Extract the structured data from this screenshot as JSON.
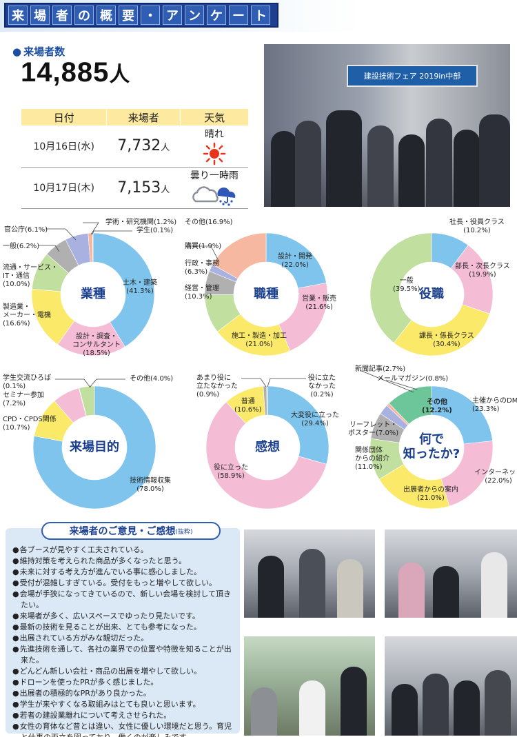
{
  "header": {
    "title_chars": [
      "来",
      "場",
      "者",
      "の",
      "概",
      "要",
      "・",
      "ア",
      "ン",
      "ケ",
      "ー",
      "ト"
    ]
  },
  "visitors": {
    "label": "来場者数",
    "total": "14,885",
    "unit": "人",
    "table": {
      "headers": [
        "日付",
        "来場者",
        "天気"
      ],
      "rows": [
        {
          "date": "10月16日(水)",
          "count": "7,732",
          "unit": "人",
          "weather": "晴れ",
          "weather_icon": "sun-icon"
        },
        {
          "date": "10月17日(木)",
          "count": "7,153",
          "unit": "人",
          "weather": "曇り一時雨",
          "weather_icon": "cloud-rain-icon"
        }
      ]
    }
  },
  "photos": {
    "main_sign": "建設技術フェア 2019in中部"
  },
  "chart_data": [
    {
      "type": "pie",
      "title": "業種",
      "labels": [
        "土木・建築",
        "設計・調査・コンサルタント",
        "製造業・メーカー・電機",
        "流通・サービス・IT・通信",
        "一般",
        "官公庁",
        "学術・研究機関",
        "学生"
      ],
      "values": [
        41.3,
        18.5,
        16.6,
        10.0,
        6.2,
        6.1,
        1.2,
        0.1
      ],
      "colors": [
        "#7fc4ec",
        "#f5bcd6",
        "#fbe96a",
        "#c1df9e",
        "#b0b0b0",
        "#a9b1e0",
        "#f6b8a0",
        "#bfbfbf"
      ],
      "display_labels": [
        "土木・建築\n(41.3%)",
        "設計・調査・\nコンサルタント\n(18.5%)",
        "製造業・\nメーカー・電機\n(16.6%)",
        "流通・サービス・\nIT・通信\n(10.0%)",
        "一般(6.2%)",
        "官公庁(6.1%)",
        "学術・研究機関(1.2%)",
        "学生(0.1%)"
      ]
    },
    {
      "type": "pie",
      "title": "職種",
      "labels": [
        "設計・開発",
        "営業・販売",
        "施工・製造・加工",
        "経営・管理",
        "行政・事務",
        "購買",
        "その他"
      ],
      "values": [
        22.0,
        21.6,
        21.0,
        10.3,
        6.3,
        1.9,
        16.9
      ],
      "colors": [
        "#7fc4ec",
        "#f5bcd6",
        "#fbe96a",
        "#c1df9e",
        "#b0b0b0",
        "#a9b1e0",
        "#f6b8a0"
      ],
      "display_labels": [
        "設計・開発\n(22.0%)",
        "営業・販売\n(21.6%)",
        "施工・製造・加工\n(21.0%)",
        "経営・管理\n(10.3%)",
        "行政・事務\n(6.3%)",
        "購買(1.9%)",
        "その他(16.9%)"
      ]
    },
    {
      "type": "pie",
      "title": "役職",
      "labels": [
        "社長・役員クラス",
        "部長・次長クラス",
        "課長・係長クラス",
        "一般"
      ],
      "values": [
        10.2,
        19.9,
        30.4,
        39.5
      ],
      "colors": [
        "#7fc4ec",
        "#f5bcd6",
        "#fbe96a",
        "#c1df9e"
      ],
      "display_labels": [
        "社長・役員クラス\n(10.2%)",
        "部長・次長クラス\n(19.9%)",
        "課長・係長クラス\n(30.4%)",
        "一般\n(39.5%)"
      ]
    },
    {
      "type": "pie",
      "title": "来場目的",
      "labels": [
        "技術情報収集",
        "CPD・CPDS関係",
        "セミナー参加",
        "学生交流ひろば",
        "その他"
      ],
      "values": [
        78.0,
        10.7,
        7.2,
        0.1,
        4.0
      ],
      "colors": [
        "#7fc4ec",
        "#fbe96a",
        "#f5bcd6",
        "#bfbfbf",
        "#c1df9e"
      ],
      "display_labels": [
        "技術情報収集\n(78.0%)",
        "CPD・CPDS関係\n(10.7%)",
        "セミナー参加\n(7.2%)",
        "学生交流ひろば\n(0.1%)",
        "その他(4.0%)"
      ]
    },
    {
      "type": "pie",
      "title": "感想",
      "labels": [
        "大変役に立った",
        "役に立った",
        "普通",
        "あまり役に立たなかった",
        "役に立たなかった"
      ],
      "values": [
        29.4,
        58.9,
        10.6,
        0.9,
        0.2
      ],
      "colors": [
        "#7fc4ec",
        "#f5bcd6",
        "#fbe96a",
        "#b0b0b0",
        "#c1df9e"
      ],
      "display_labels": [
        "大変役に立った\n(29.4%)",
        "役に立った\n(58.9%)",
        "普通\n(10.6%)",
        "あまり役に\n立たなかった\n(0.9%)",
        "役に立た\nなかった\n(0.2%)"
      ]
    },
    {
      "type": "pie",
      "title": "何で知ったか?",
      "labels": [
        "主催からのDM",
        "インターネット",
        "出展者からの案内",
        "関係団体からの紹介",
        "リーフレット・ポスター",
        "新聞記事",
        "メールマガジン",
        "その他"
      ],
      "values": [
        23.3,
        22.0,
        21.0,
        11.0,
        7.0,
        2.7,
        0.8,
        12.2
      ],
      "colors": [
        "#7fc4ec",
        "#f5bcd6",
        "#fbe96a",
        "#c1df9e",
        "#b0b0b0",
        "#a9b1e0",
        "#f6b8a0",
        "#6cc69a"
      ],
      "display_labels": [
        "主催からのDM\n(23.3%)",
        "インターネット\n(22.0%)",
        "出展者からの案内\n(21.0%)",
        "関係団体\nからの紹介\n(11.0%)",
        "リーフレット・\nポスター(7.0%)",
        "新聞記事(2.7%)",
        "メールマガジン(0.8%)",
        "その他\n(12.2%)"
      ]
    }
  ],
  "opinions": {
    "title": "来場者のご意見・ご感想",
    "title_note": "(抜粋)",
    "items": [
      "各ブースが見やすく工夫されている。",
      "維持対策を考えられた商品が多くなったと思う。",
      "未来に対する考え方が進んでいる事に感心しました。",
      "受付が混雑しすぎている。受付をもっと増やして欲しい。",
      "会場が手狭になってきているので、新しい会場を検討して頂きたい。",
      "来場者が多く、広いスペースでゆったり見たいです。",
      "最新の技術を見ることが出来、とても参考になった。",
      "出展されている方がみな親切だった。",
      "先進技術を通して、各社の業界での位置や特徴を知ることが出来た。",
      "どんどん新しい会社・商品の出展を増やして欲しい。",
      "ドローンを使ったPRが多く感じました。",
      "出展者の積極的なPRがあり良かった。",
      "学生が来やすくなる取組みはとても良いと思います。",
      "若者の建設業離れについて考えさせられた。",
      "女性の育体など昔とは違い、女性に優しい環境だと思う。育児と仕事の両立を図っており、働くのが楽しみです。"
    ]
  }
}
